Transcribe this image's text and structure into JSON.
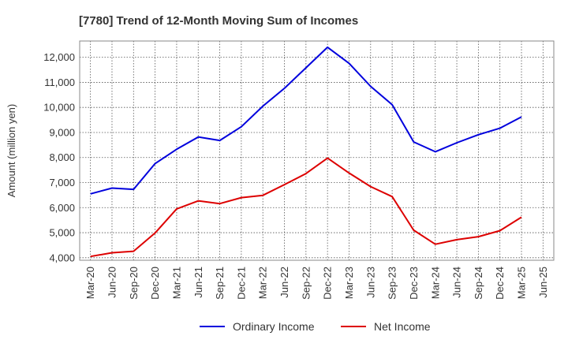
{
  "chart_data": {
    "type": "line",
    "title": "[7780]  Trend of 12-Month Moving Sum of Incomes",
    "xlabel": "",
    "ylabel": "Amount (million yen)",
    "ylim": [
      3900,
      12650
    ],
    "yticks": [
      4000,
      5000,
      6000,
      7000,
      8000,
      9000,
      10000,
      11000,
      12000
    ],
    "ytick_labels": [
      "4,000",
      "5,000",
      "6,000",
      "7,000",
      "8,000",
      "9,000",
      "10,000",
      "11,000",
      "12,000"
    ],
    "categories": [
      "Mar-20",
      "Jun-20",
      "Sep-20",
      "Dec-20",
      "Mar-21",
      "Jun-21",
      "Sep-21",
      "Dec-21",
      "Mar-22",
      "Jun-22",
      "Sep-22",
      "Dec-22",
      "Mar-23",
      "Jun-23",
      "Sep-23",
      "Dec-23",
      "Mar-24",
      "Jun-24",
      "Sep-24",
      "Dec-24",
      "Mar-25",
      "Jun-25"
    ],
    "grid": true,
    "legend_position": "bottom",
    "series": [
      {
        "name": "Ordinary Income",
        "color": "#0000dd",
        "values": [
          6550,
          6780,
          6730,
          7760,
          8330,
          8820,
          8680,
          9230,
          10050,
          10760,
          11580,
          12400,
          11760,
          10840,
          10110,
          8620,
          8230,
          8590,
          8910,
          9170,
          9620,
          null
        ]
      },
      {
        "name": "Net Income",
        "color": "#dd0000",
        "values": [
          4050,
          4200,
          4260,
          4990,
          5950,
          6270,
          6160,
          6400,
          6490,
          6920,
          7360,
          7980,
          7380,
          6840,
          6440,
          5100,
          4540,
          4720,
          4840,
          5080,
          5620,
          null
        ]
      }
    ]
  }
}
